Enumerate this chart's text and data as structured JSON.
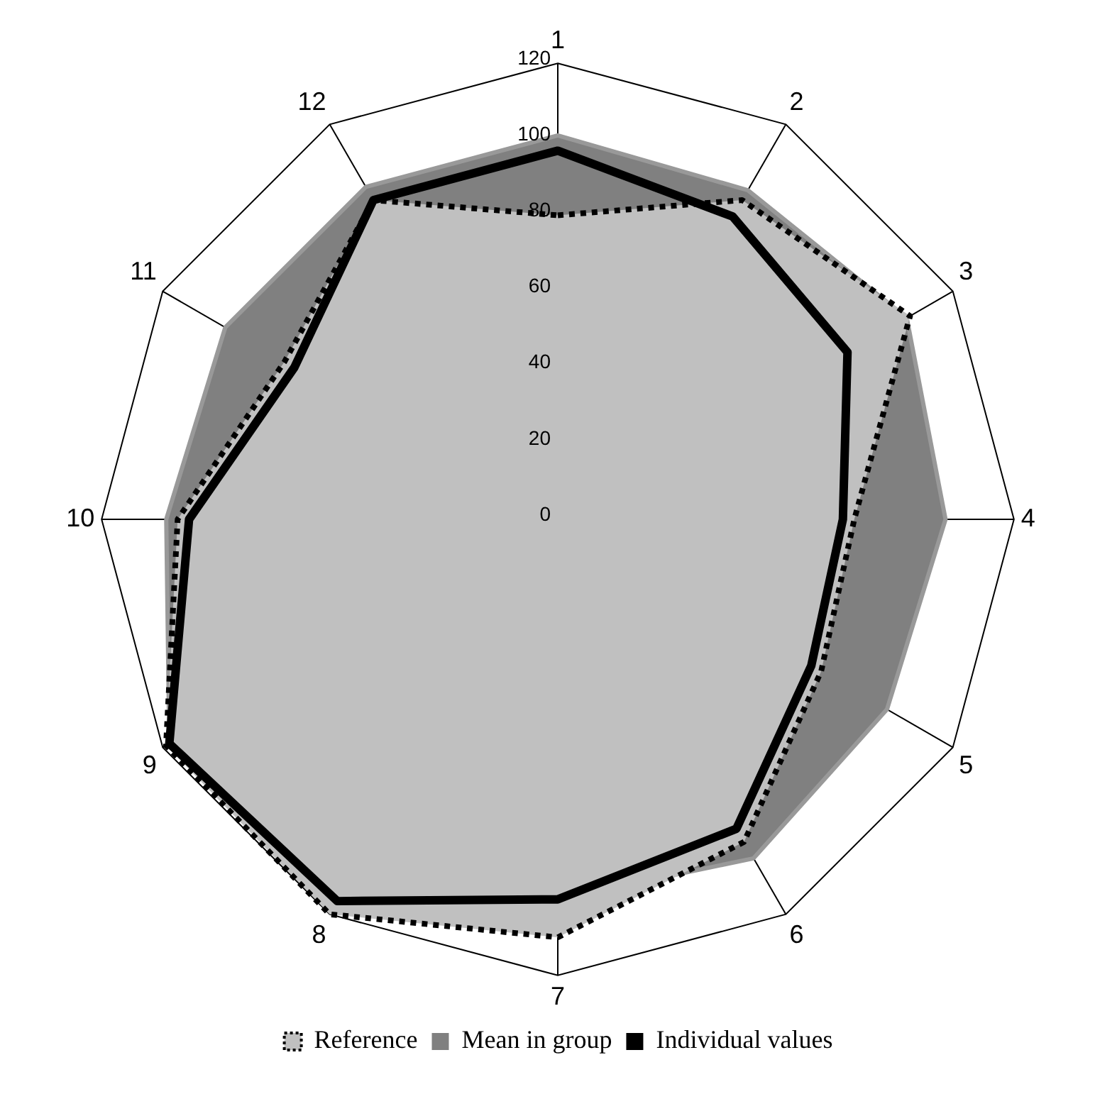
{
  "chart_data": {
    "type": "radar",
    "categories": [
      "1",
      "2",
      "3",
      "4",
      "5",
      "6",
      "7",
      "8",
      "9",
      "10",
      "11",
      "12"
    ],
    "series": [
      {
        "name": "Reference",
        "color": "#c0c0c0",
        "values": [
          80,
          97,
          107,
          78,
          80,
          98,
          110,
          120,
          119,
          100,
          83,
          97
        ]
      },
      {
        "name": "Mean in group",
        "color": "#808080",
        "values": [
          101,
          100,
          106,
          102,
          100,
          103,
          100,
          115,
          118,
          103,
          101,
          101
        ]
      },
      {
        "name": "Individual values",
        "color": "#000000",
        "values": [
          97,
          92,
          88,
          75,
          77,
          94,
          100,
          116,
          118,
          97,
          80,
          97
        ]
      }
    ],
    "ylim": [
      0,
      120
    ],
    "yticks": [
      0,
      20,
      40,
      60,
      80,
      100,
      120
    ],
    "legend": "bottom"
  }
}
